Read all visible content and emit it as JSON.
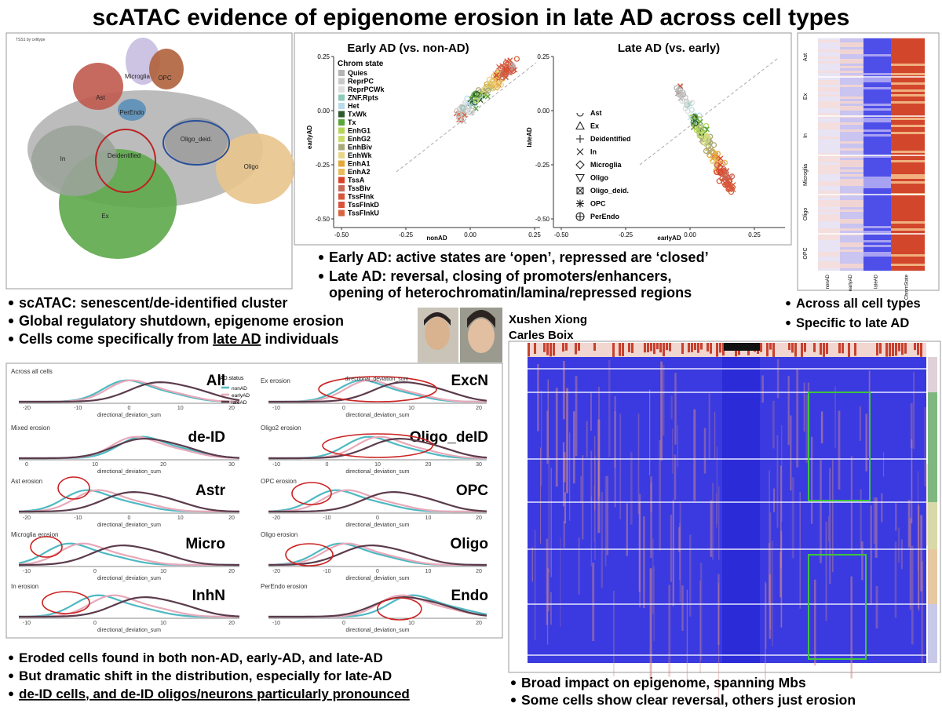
{
  "title": "scATAC evidence of epigenome erosion in late AD across cell types",
  "umap": {
    "title": "TSS1 by celltype",
    "clusters": [
      "Microglia",
      "OPC",
      "Ast",
      "PerEndo",
      "Oligo_deid.",
      "In",
      "Deidentified",
      "Oligo",
      "Ex"
    ]
  },
  "scatter": {
    "panels": [
      {
        "title": "Early AD (vs. non-AD)",
        "xlabel": "nonAD",
        "ylabel": "earlyAD",
        "xticks": [
          "-0.50",
          "-0.25",
          "0.00",
          "0.25"
        ],
        "yticks": [
          "0.25",
          "0.00",
          "-0.25",
          "-0.50"
        ]
      },
      {
        "title": "Late AD (vs. early)",
        "xlabel": "earlyAD",
        "ylabel": "lateAD",
        "xticks": [
          "-0.50",
          "-0.25",
          "0.00",
          "0.25"
        ],
        "yticks": [
          "0.25",
          "0.00",
          "-0.25",
          "-0.50"
        ]
      }
    ],
    "legend_title": "Chrom state",
    "chrom_states": [
      {
        "name": "Quies",
        "color": "#b4b4b4"
      },
      {
        "name": "ReprPC",
        "color": "#c8c8c8"
      },
      {
        "name": "ReprPCWk",
        "color": "#dedede"
      },
      {
        "name": "ZNF.Rpts",
        "color": "#8fcab9"
      },
      {
        "name": "Het",
        "color": "#b7dbe8"
      },
      {
        "name": "TxWk",
        "color": "#2f5a2f"
      },
      {
        "name": "Tx",
        "color": "#5aa63a"
      },
      {
        "name": "EnhG1",
        "color": "#b6d65a"
      },
      {
        "name": "EnhG2",
        "color": "#cadc70"
      },
      {
        "name": "EnhBiv",
        "color": "#a9a97a"
      },
      {
        "name": "EnhWk",
        "color": "#e9d58a"
      },
      {
        "name": "EnhA1",
        "color": "#e2a93a"
      },
      {
        "name": "EnhA2",
        "color": "#e8bb5c"
      },
      {
        "name": "TssA",
        "color": "#d8412a"
      },
      {
        "name": "TssBiv",
        "color": "#c76a5b"
      },
      {
        "name": "TssFlnk",
        "color": "#d4593a"
      },
      {
        "name": "TssFlnkD",
        "color": "#d9543a"
      },
      {
        "name": "TssFlnkU",
        "color": "#d8653f"
      }
    ],
    "cell_types": [
      "Ast",
      "Ex",
      "Deidentified",
      "In",
      "Microglia",
      "Oligo",
      "Oligo_deid.",
      "OPC",
      "PerEndo"
    ]
  },
  "notes_mid": [
    [
      "Early AD: active states are ‘open’, repressed are ‘closed’"
    ],
    [
      "Late AD: reversal, closing of promoters/enhancers,",
      "opening of heterochromatin/lamina/repressed regions"
    ]
  ],
  "notes_left": [
    [
      "scATAC: senescent/de-identified cluster"
    ],
    [
      "Global regulatory shutdown, epigenome erosion"
    ],
    [
      [
        {
          "text": "Cells come specifically from "
        },
        {
          "text": "late AD",
          "underline": true
        },
        {
          "text": " individuals"
        }
      ]
    ]
  ],
  "notes_right": [
    [
      "Across all cell types"
    ],
    [
      "Specific to late AD"
    ]
  ],
  "authors": [
    "Xushen Xiong",
    "Carles Boix"
  ],
  "density": {
    "xlabel": "directional_deviation_sum",
    "right_header": "directional_deviation_sum",
    "legend_title": "AD.status",
    "legend": [
      {
        "name": "nonAD",
        "color": "#4fb9c2"
      },
      {
        "name": "earlyAD",
        "color": "#e7a9b9"
      },
      {
        "name": "lateAD",
        "color": "#5b3b4b"
      }
    ],
    "panels": [
      {
        "subtitle": "Across all cells",
        "label": "All",
        "ticks": [
          "-20",
          "-10",
          "0",
          "10",
          "20"
        ]
      },
      {
        "subtitle": "Mixed erosion",
        "label": "de-ID",
        "ticks": [
          "0",
          "10",
          "20",
          "30"
        ]
      },
      {
        "subtitle": "Ast erosion",
        "label": "Astr",
        "ticks": [
          "-20",
          "-10",
          "0",
          "10",
          "20"
        ]
      },
      {
        "subtitle": "Microglia erosion",
        "label": "Micro",
        "ticks": [
          "-10",
          "0",
          "10",
          "20"
        ]
      },
      {
        "subtitle": "In erosion",
        "label": "InhN",
        "ticks": [
          "-10",
          "0",
          "10",
          "20"
        ]
      },
      {
        "subtitle": "Ex erosion",
        "label": "ExcN",
        "ticks": [
          "-10",
          "0",
          "10",
          "20"
        ]
      },
      {
        "subtitle": "Oligo2 erosion",
        "label": "Oligo_deID",
        "ticks": [
          "-10",
          "0",
          "10",
          "20",
          "30"
        ]
      },
      {
        "subtitle": "OPC erosion",
        "label": "OPC",
        "ticks": [
          "-20",
          "-10",
          "0",
          "10",
          "20"
        ]
      },
      {
        "subtitle": "Oligo erosion",
        "label": "Oligo",
        "ticks": [
          "-20",
          "-10",
          "0",
          "10",
          "20"
        ]
      },
      {
        "subtitle": "PerEndo erosion",
        "label": "Endo",
        "ticks": [
          "-10",
          "0",
          "10",
          "20"
        ]
      }
    ]
  },
  "notes_bottom_left": [
    [
      "Eroded cells found in both non-AD, early-AD, and late-AD"
    ],
    [
      "But dramatic shift in the distribution, especially for late-AD"
    ],
    [
      [
        {
          "text": "de-ID cells, and de-ID oligos/neurons particularly pronounced",
          "underline": true
        }
      ]
    ]
  ],
  "notes_bottom_right": [
    [
      "Broad impact on epigenome, spanning Mbs"
    ],
    [
      "Some cells show clear reversal, others just erosion"
    ]
  ],
  "heatmap_small": {
    "columns": [
      "nonAD",
      "earlyAD",
      "lateAD",
      "ChromState"
    ],
    "rows": [
      "Ast",
      "Ex",
      "In",
      "Microglia",
      "Oligo",
      "OPC"
    ]
  }
}
